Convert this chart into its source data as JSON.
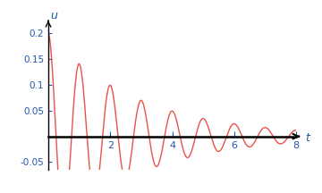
{
  "t_min": 0,
  "t_max": 8,
  "u_min": -0.065,
  "u_max": 0.22,
  "line_color": "#e8524a",
  "axis_color": "#000000",
  "label_color": "#2255aa",
  "xlabel": "t",
  "ylabel": "u",
  "xticks": [
    2,
    4,
    6,
    8
  ],
  "yticks": [
    -0.05,
    0.05,
    0.1,
    0.15,
    0.2
  ],
  "background_color": "#ffffff",
  "alpha": 0.35,
  "omega": 6.28,
  "A": 0.2,
  "B": 0.0,
  "figwidth": 3.6,
  "figheight": 2.16,
  "dpi": 100
}
